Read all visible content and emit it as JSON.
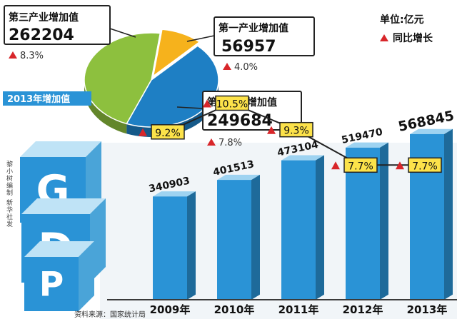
{
  "unit_label": "单位:亿元",
  "legend_label": "同比增长",
  "pie_title": "2013年增加值",
  "credit": "黎小树编制 新华社发",
  "source": "资料来源：国家统计局",
  "gdp_letters": [
    "G",
    "D",
    "P"
  ],
  "colors": {
    "tertiary": "#8dc03e",
    "primary": "#f6b21c",
    "secondary": "#1e7fc4",
    "bar": "#2a93d6",
    "growth_box": "#fce24a",
    "triangle": "#d8262a",
    "line": "#222222"
  },
  "chart_data": [
    {
      "type": "pie",
      "title": "2013年增加值",
      "slices": [
        {
          "label": "第三产业增加值",
          "value": 262204,
          "growth": "8.3%"
        },
        {
          "label": "第一产业增加值",
          "value": 56957,
          "growth": "4.0%"
        },
        {
          "label": "第二产业增加值",
          "value": 249684,
          "growth": "7.8%"
        }
      ]
    },
    {
      "type": "bar",
      "categories": [
        "2009年",
        "2010年",
        "2011年",
        "2012年",
        "2013年"
      ],
      "values": [
        340903,
        401513,
        473104,
        519470,
        568845
      ],
      "growth_labels": [
        "9.2%",
        "10.5%",
        "9.3%",
        "7.7%",
        "7.7%"
      ],
      "growth": [
        9.2,
        10.5,
        9.3,
        7.7,
        7.7
      ],
      "ylim": [
        0,
        600000
      ]
    }
  ]
}
